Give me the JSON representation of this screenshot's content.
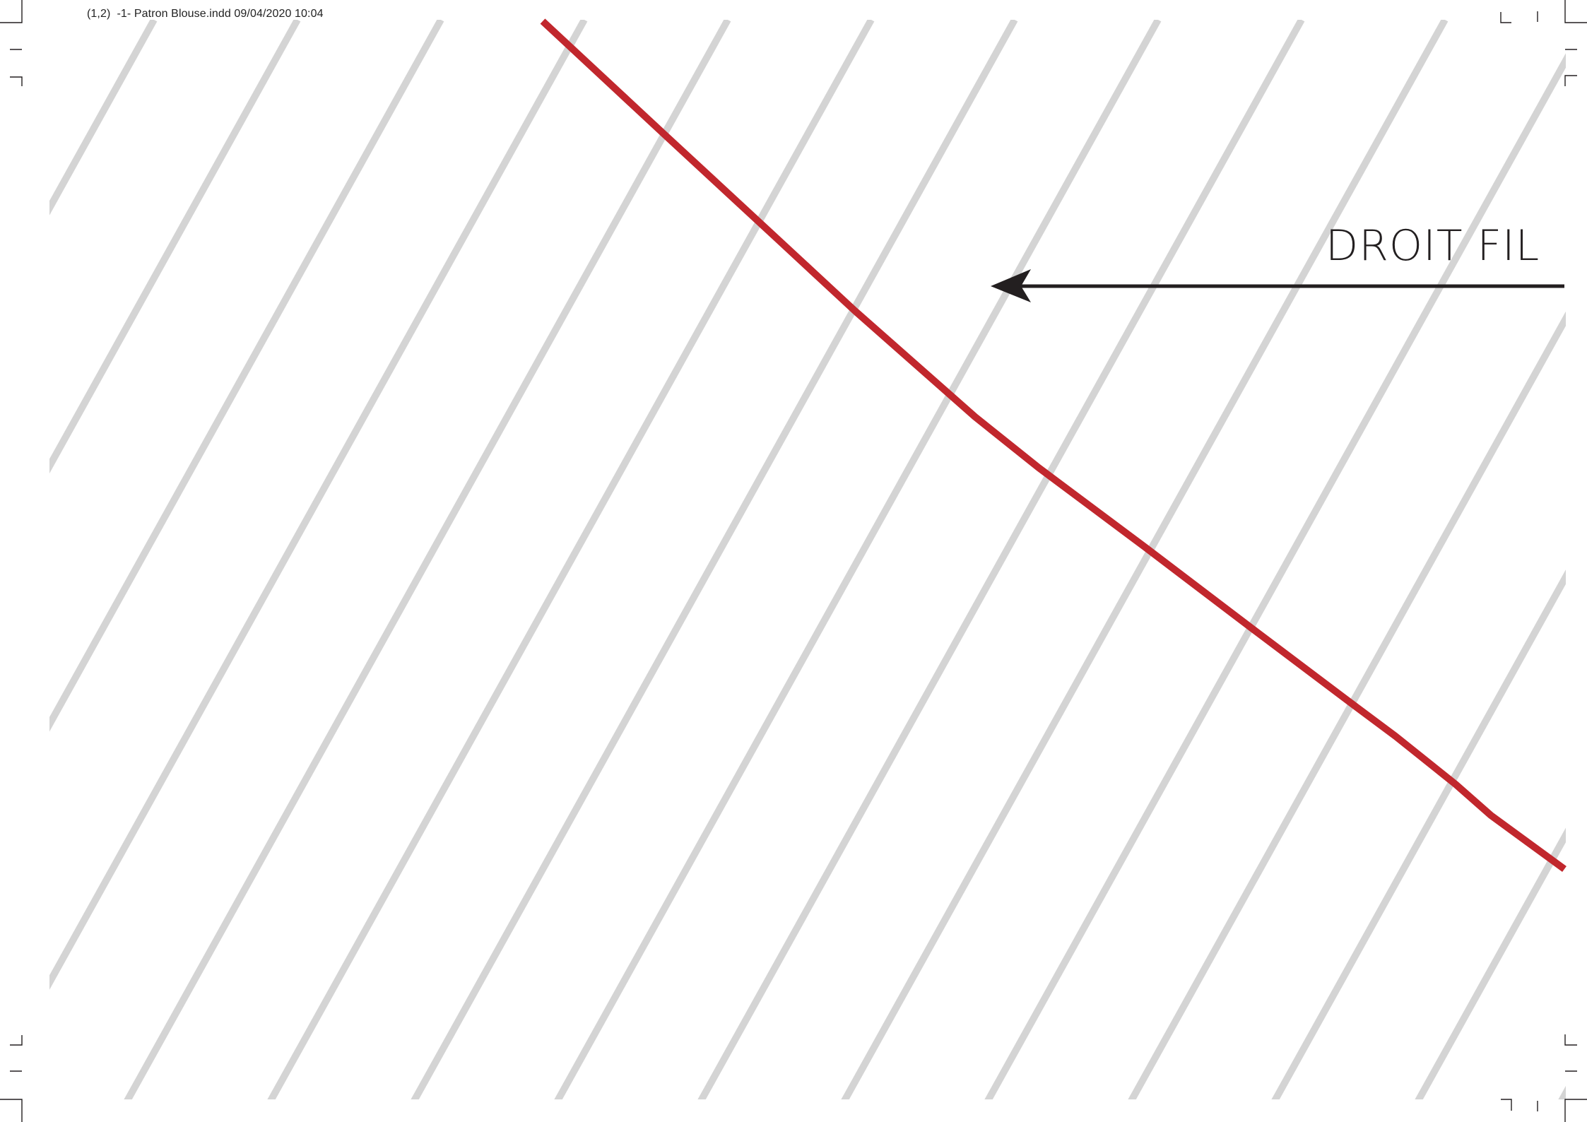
{
  "slug_line": "(1,2)  -1- Patron Blouse.indd 09/04/2020 10:04",
  "grainline": {
    "label": "DROIT FIL",
    "arrow_color": "#231f20"
  },
  "colors": {
    "hatch": "#d4d4d4",
    "cut_line": "#c1272d",
    "crop_marks": "#231f20"
  }
}
